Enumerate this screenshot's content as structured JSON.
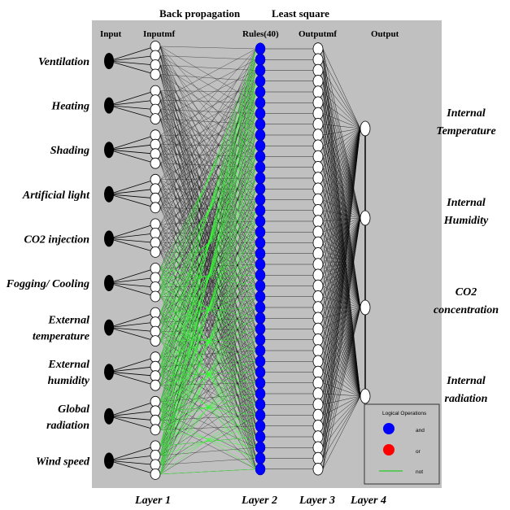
{
  "top_labels": {
    "back_propagation": "Back propagation",
    "least_square": "Least square"
  },
  "column_headers": {
    "input": "Input",
    "inputmf": "Inputmf",
    "rules": "Rules(40)",
    "outputmf": "Outputmf",
    "output": "Output"
  },
  "inputs": [
    {
      "label": [
        "Ventilation"
      ]
    },
    {
      "label": [
        "Heating"
      ]
    },
    {
      "label": [
        "Shading"
      ]
    },
    {
      "label": [
        "Artificial light"
      ]
    },
    {
      "label": [
        "CO2 injection"
      ]
    },
    {
      "label": [
        "Fogging/ Cooling"
      ]
    },
    {
      "label": [
        "External",
        "temperature"
      ]
    },
    {
      "label": [
        "External",
        "humidity"
      ]
    },
    {
      "label": [
        "Global",
        "radiation"
      ]
    },
    {
      "label": [
        "Wind speed"
      ]
    }
  ],
  "outputs": [
    {
      "label": [
        "Internal",
        "Temperature"
      ]
    },
    {
      "label": [
        "Internal",
        "Humidity"
      ]
    },
    {
      "label": [
        "CO2",
        "concentration"
      ]
    },
    {
      "label": [
        "Internal",
        "radiation"
      ]
    }
  ],
  "layers": [
    "Layer 1",
    "Layer 2",
    "Layer 3",
    "Layer 4"
  ],
  "rule_count": 40,
  "mf_per_input": 4,
  "legend": {
    "title": "Logical Operations",
    "items": [
      {
        "label": "and",
        "color": "#0000ff",
        "kind": "dot"
      },
      {
        "label": "or",
        "color": "#ff0000",
        "kind": "dot"
      },
      {
        "label": "not",
        "color": "#00cc00",
        "kind": "line"
      }
    ]
  },
  "colors": {
    "background": "#c0c0c0",
    "rule_node": "#0000ff",
    "edge": "#000000",
    "green_edge": "#33ff33"
  }
}
